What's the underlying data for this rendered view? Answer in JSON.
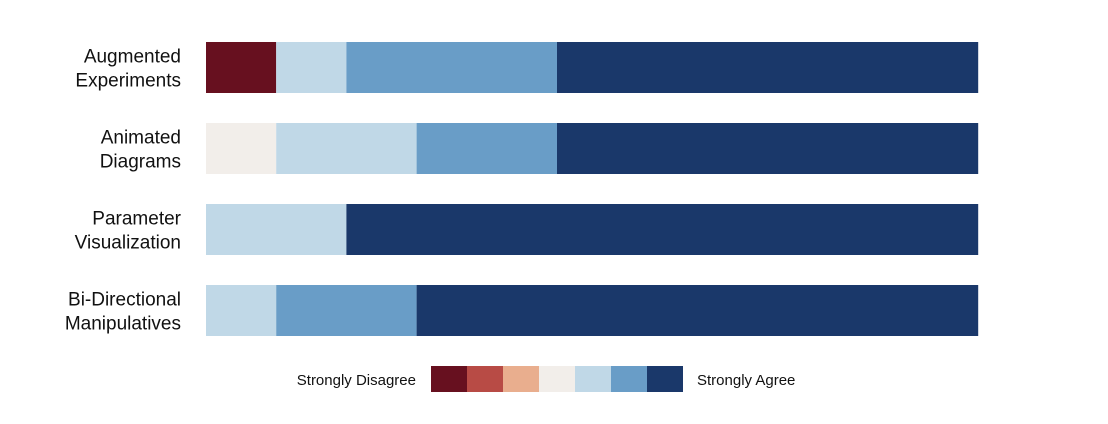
{
  "chart_data": {
    "type": "bar",
    "orientation": "horizontal",
    "stacked": true,
    "categories": [
      [
        "Augmented",
        "Experiments"
      ],
      [
        "Animated",
        "Diagrams"
      ],
      [
        "Parameter",
        "Visualization"
      ],
      [
        "Bi-Directional",
        "Manipulatives"
      ]
    ],
    "series": [
      {
        "level": 1,
        "color": "#67101f",
        "values": [
          1,
          0,
          0,
          0
        ]
      },
      {
        "level": 2,
        "color": "#b84b45",
        "values": [
          0,
          0,
          0,
          0
        ]
      },
      {
        "level": 3,
        "color": "#e9ae8e",
        "values": [
          0,
          0,
          0,
          0
        ]
      },
      {
        "level": 4,
        "color": "#f2eeea",
        "values": [
          0,
          1,
          0,
          0
        ]
      },
      {
        "level": 5,
        "color": "#c0d8e7",
        "values": [
          1,
          2,
          2,
          1
        ]
      },
      {
        "level": 6,
        "color": "#699dc7",
        "values": [
          3,
          2,
          0,
          2
        ]
      },
      {
        "level": 7,
        "color": "#1a386a",
        "values": [
          6,
          6,
          9,
          8
        ]
      }
    ],
    "legend": {
      "left_label": "Strongly Disagree",
      "right_label": "Strongly Agree",
      "position": "bottom"
    },
    "grid": false
  }
}
